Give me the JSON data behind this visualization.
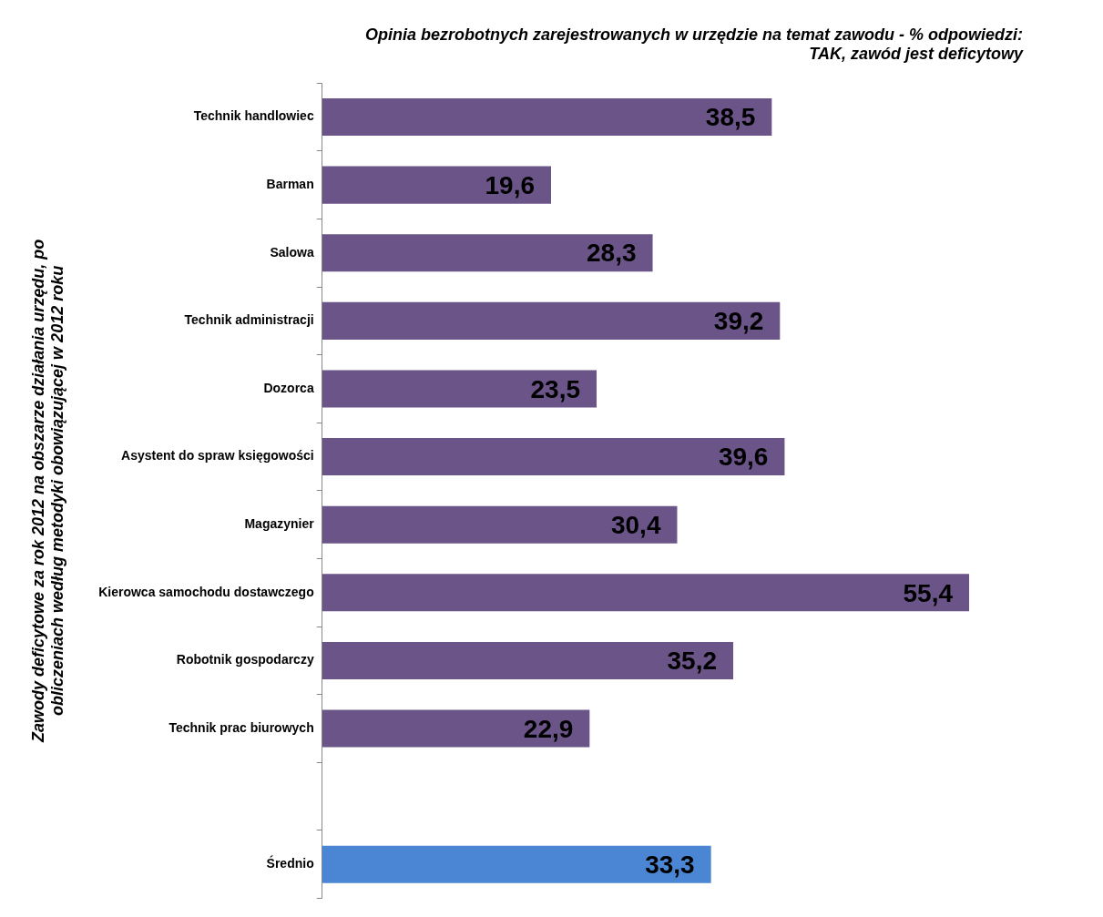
{
  "chart_data": {
    "type": "bar",
    "orientation": "horizontal",
    "title": "Opinia bezrobotnych zarejestrowanych w urzędzie na temat zawodu - % odpowiedzi:\nTAK, zawód jest deficytowy",
    "ylabel": "Zawody deficytowe za rok 2012 na obszarze działania urzędu, po\nobliczeniach według metodyki obowiązującej w 2012 roku",
    "categories": [
      "Technik handlowiec",
      "Barman",
      "Salowa",
      "Technik administracji",
      "Dozorca",
      "Asystent do spraw księgowości",
      "Magazynier",
      "Kierowca samochodu dostawczego",
      "Robotnik gospodarczy",
      "Technik prac biurowych",
      null,
      "Średnio"
    ],
    "values": [
      38.5,
      19.6,
      28.3,
      39.2,
      23.5,
      39.6,
      30.4,
      55.4,
      35.2,
      22.9,
      null,
      33.3
    ],
    "value_labels": [
      "38,5",
      "19,6",
      "28,3",
      "39,2",
      "23,5",
      "39,6",
      "30,4",
      "55,4",
      "35,2",
      "22,9",
      null,
      "33,3"
    ],
    "colors": [
      "#6a5488",
      "#6a5488",
      "#6a5488",
      "#6a5488",
      "#6a5488",
      "#6a5488",
      "#6a5488",
      "#6a5488",
      "#6a5488",
      "#6a5488",
      "#6a5488",
      "#4a86d4"
    ],
    "legend": false
  }
}
